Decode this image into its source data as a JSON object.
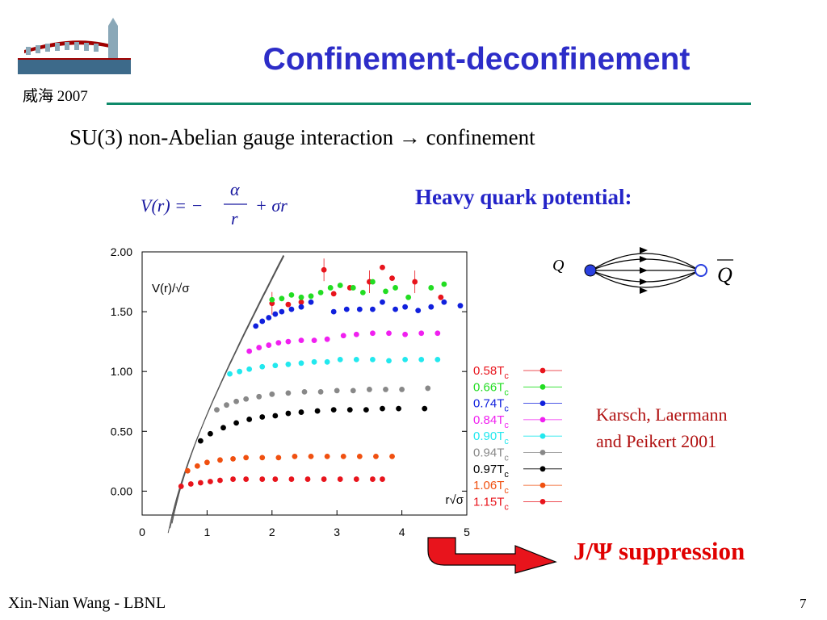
{
  "header": {
    "sub_label": "威海 2007"
  },
  "slide": {
    "title": "Confinement-deconfinement",
    "subtitle_text": "SU(3) non-Abelian gauge interaction",
    "subtitle_arrow": "→",
    "subtitle_result": "confinement",
    "formula": {
      "lhs": "V(r) = −",
      "num": "α",
      "den": "r",
      "rhs": "+ σr"
    },
    "heavy_quark_label": "Heavy quark potential:",
    "q_label": "Q",
    "qbar_label": "Q",
    "citation": "Karsch, Laermann\nand Peikert 2001",
    "result": "J/Ψ suppression",
    "footer_author": "Xin-Nian Wang - LBNL",
    "page_number": "7"
  },
  "colors": {
    "title": "#2d2dc8",
    "rule": "#0e8a6a",
    "citation": "#b01010",
    "result": "#e00000",
    "heavy_quark": "#2424c8"
  },
  "chart_data": {
    "type": "scatter",
    "ylabel": "V(r)/√σ",
    "xlabel": "r√σ",
    "xlim": [
      0,
      5
    ],
    "ylim": [
      -0.2,
      2.0
    ],
    "x_ticks": [
      "0",
      "1",
      "2",
      "3",
      "4",
      "5"
    ],
    "y_ticks": [
      "0.00",
      "0.50",
      "1.00",
      "1.50",
      "2.00"
    ],
    "y_tick_values": [
      0,
      0.5,
      1.0,
      1.5,
      2.0
    ],
    "legend_position": "right",
    "series": [
      {
        "name": "0.58T",
        "sub": "c",
        "color": "#e8141c",
        "x": [
          2.0,
          2.25,
          2.45,
          2.8,
          2.95,
          3.2,
          3.5,
          3.7,
          3.85,
          4.2,
          4.6
        ],
        "y": [
          1.57,
          1.56,
          1.58,
          1.85,
          1.65,
          1.7,
          1.75,
          1.87,
          1.78,
          1.75,
          1.62
        ]
      },
      {
        "name": "0.66T",
        "sub": "c",
        "color": "#22dd22",
        "x": [
          2.0,
          2.15,
          2.3,
          2.45,
          2.6,
          2.75,
          2.9,
          3.05,
          3.25,
          3.4,
          3.55,
          3.75,
          3.9,
          4.1,
          4.45,
          4.65
        ],
        "y": [
          1.6,
          1.61,
          1.64,
          1.62,
          1.63,
          1.66,
          1.7,
          1.72,
          1.7,
          1.66,
          1.75,
          1.67,
          1.7,
          1.62,
          1.7,
          1.73
        ]
      },
      {
        "name": "0.74T",
        "sub": "c",
        "color": "#1020dd",
        "x": [
          1.75,
          1.85,
          1.95,
          2.05,
          2.15,
          2.3,
          2.45,
          2.6,
          2.95,
          3.15,
          3.35,
          3.55,
          3.7,
          3.9,
          4.05,
          4.25,
          4.45,
          4.65,
          4.9
        ],
        "y": [
          1.38,
          1.42,
          1.45,
          1.48,
          1.5,
          1.52,
          1.54,
          1.58,
          1.5,
          1.52,
          1.52,
          1.52,
          1.58,
          1.52,
          1.54,
          1.51,
          1.54,
          1.58,
          1.55
        ]
      },
      {
        "name": "0.84T",
        "sub": "c",
        "color": "#f020f0",
        "x": [
          1.65,
          1.8,
          1.95,
          2.1,
          2.25,
          2.45,
          2.65,
          2.85,
          3.1,
          3.3,
          3.55,
          3.8,
          4.05,
          4.3,
          4.55
        ],
        "y": [
          1.17,
          1.2,
          1.22,
          1.24,
          1.25,
          1.26,
          1.26,
          1.27,
          1.3,
          1.31,
          1.32,
          1.32,
          1.31,
          1.32,
          1.32
        ]
      },
      {
        "name": "0.90T",
        "sub": "c",
        "color": "#22e8ee",
        "x": [
          1.35,
          1.5,
          1.65,
          1.85,
          2.05,
          2.25,
          2.45,
          2.65,
          2.85,
          3.05,
          3.3,
          3.55,
          3.8,
          4.05,
          4.3,
          4.55
        ],
        "y": [
          0.98,
          1.0,
          1.02,
          1.04,
          1.05,
          1.06,
          1.07,
          1.08,
          1.08,
          1.1,
          1.1,
          1.1,
          1.09,
          1.1,
          1.1,
          1.1
        ]
      },
      {
        "name": "0.94T",
        "sub": "c",
        "color": "#888888",
        "x": [
          1.15,
          1.3,
          1.45,
          1.6,
          1.8,
          2.0,
          2.25,
          2.5,
          2.75,
          3.0,
          3.25,
          3.5,
          3.75,
          4.0,
          4.4
        ],
        "y": [
          0.68,
          0.72,
          0.75,
          0.77,
          0.79,
          0.81,
          0.82,
          0.83,
          0.83,
          0.84,
          0.84,
          0.85,
          0.85,
          0.85,
          0.86
        ]
      },
      {
        "name": "0.97T",
        "sub": "c",
        "color": "#000000",
        "x": [
          0.9,
          1.05,
          1.25,
          1.45,
          1.65,
          1.85,
          2.05,
          2.25,
          2.45,
          2.7,
          2.95,
          3.2,
          3.45,
          3.7,
          3.95,
          4.35
        ],
        "y": [
          0.42,
          0.48,
          0.53,
          0.57,
          0.6,
          0.62,
          0.63,
          0.65,
          0.66,
          0.67,
          0.68,
          0.68,
          0.68,
          0.69,
          0.69,
          0.69
        ]
      },
      {
        "name": "1.06T",
        "sub": "c",
        "color": "#f05010",
        "x": [
          0.7,
          0.85,
          1.0,
          1.2,
          1.4,
          1.6,
          1.85,
          2.1,
          2.35,
          2.6,
          2.85,
          3.1,
          3.35,
          3.6,
          3.85
        ],
        "y": [
          0.17,
          0.21,
          0.24,
          0.26,
          0.27,
          0.28,
          0.28,
          0.28,
          0.29,
          0.29,
          0.29,
          0.29,
          0.29,
          0.29,
          0.29
        ]
      },
      {
        "name": "1.15T",
        "sub": "c",
        "color": "#e8141c",
        "x": [
          0.6,
          0.75,
          0.9,
          1.05,
          1.2,
          1.4,
          1.6,
          1.85,
          2.05,
          2.3,
          2.55,
          2.8,
          3.05,
          3.3,
          3.55,
          3.7
        ],
        "y": [
          0.04,
          0.06,
          0.07,
          0.08,
          0.09,
          0.1,
          0.1,
          0.1,
          0.1,
          0.1,
          0.1,
          0.1,
          0.1,
          0.1,
          0.1,
          0.1
        ]
      }
    ]
  }
}
